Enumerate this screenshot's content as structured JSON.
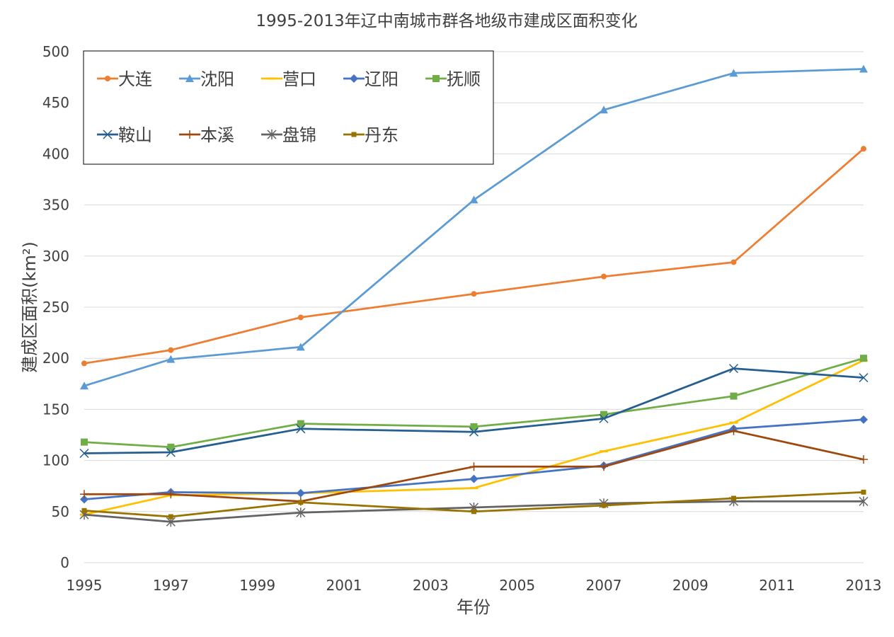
{
  "chart_data": {
    "type": "line",
    "title": "1995-2013年辽中南城市群各地级市建成区面积变化",
    "xlabel": "年份",
    "ylabel": "建成区面积(km²)",
    "xlim": [
      1995,
      2013
    ],
    "ylim": [
      0,
      500
    ],
    "x_ticks": [
      "1995",
      "1997",
      "1999",
      "2001",
      "2003",
      "2005",
      "2007",
      "2009",
      "2011",
      "2013"
    ],
    "y_ticks": [
      "0",
      "50",
      "100",
      "150",
      "200",
      "250",
      "300",
      "350",
      "400",
      "450",
      "500"
    ],
    "grid": "horizontal",
    "legend_position": "top-left",
    "x": [
      1995,
      1997,
      2000,
      2004,
      2007,
      2010,
      2013
    ],
    "series": [
      {
        "name": "大连",
        "color": "#ED7D31",
        "marker": "circle",
        "values": [
          195,
          208,
          240,
          263,
          280,
          294,
          405
        ]
      },
      {
        "name": "沈阳",
        "color": "#5B9BD5",
        "marker": "triangle",
        "values": [
          173,
          199,
          211,
          355,
          443,
          479,
          483
        ]
      },
      {
        "name": "营口",
        "color": "#FFC000",
        "marker": "dash",
        "values": [
          47,
          66,
          68,
          73,
          109,
          137,
          198
        ]
      },
      {
        "name": "辽阳",
        "color": "#4472C4",
        "marker": "diamond",
        "values": [
          62,
          69,
          68,
          82,
          95,
          131,
          140
        ]
      },
      {
        "name": "抚顺",
        "color": "#70AD47",
        "marker": "square",
        "values": [
          118,
          113,
          136,
          133,
          145,
          163,
          200
        ]
      },
      {
        "name": "鞍山",
        "color": "#255E91",
        "marker": "x",
        "values": [
          107,
          108,
          131,
          128,
          141,
          190,
          181
        ]
      },
      {
        "name": "本溪",
        "color": "#9E480E",
        "marker": "plus",
        "values": [
          67,
          67,
          60,
          94,
          94,
          129,
          101
        ]
      },
      {
        "name": "盘锦",
        "color": "#636363",
        "marker": "star",
        "values": [
          47,
          40,
          49,
          54,
          58,
          60,
          60
        ]
      },
      {
        "name": "丹东",
        "color": "#997300",
        "marker": "smallsquare",
        "values": [
          51,
          45,
          59,
          50,
          56,
          63,
          69
        ]
      }
    ]
  }
}
